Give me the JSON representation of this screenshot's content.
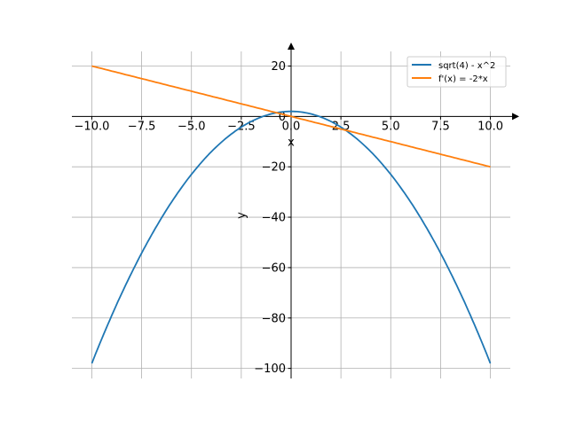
{
  "chart_data": {
    "type": "line",
    "title": "",
    "xlabel": "x",
    "ylabel": "y",
    "xlim": [
      -11,
      11
    ],
    "ylim": [
      -104,
      25.8
    ],
    "grid": true,
    "legend_position": "top-right",
    "xticks": [
      -10,
      -7.5,
      -5,
      -2.5,
      0,
      2.5,
      5,
      7.5,
      10
    ],
    "xtick_labels": [
      "−10.0",
      "−7.5",
      "−5.0",
      "−2.5",
      "0.0",
      "2.5",
      "5.0",
      "7.5",
      "10.0"
    ],
    "yticks": [
      20,
      0,
      -20,
      -40,
      -60,
      -80,
      -100
    ],
    "ytick_labels": [
      "20",
      "0",
      "−20",
      "−40",
      "−60",
      "−80",
      "−100"
    ],
    "series": [
      {
        "name": "sqrt(4) - x^2",
        "color": "#1f77b4",
        "x_range": [
          -10,
          10
        ],
        "expr": "2 - x^2",
        "x": [
          -10,
          -7.5,
          -5,
          -2.5,
          0,
          2.5,
          5,
          7.5,
          10
        ],
        "y": [
          -98,
          -54.25,
          -23,
          -4.25,
          2,
          -4.25,
          -23,
          -54.25,
          -98
        ]
      },
      {
        "name": "f'(x) = -2*x",
        "color": "#ff7f0e",
        "x_range": [
          -10,
          10
        ],
        "expr": "-2*x",
        "x": [
          -10,
          10
        ],
        "y": [
          20,
          -20
        ]
      }
    ]
  }
}
